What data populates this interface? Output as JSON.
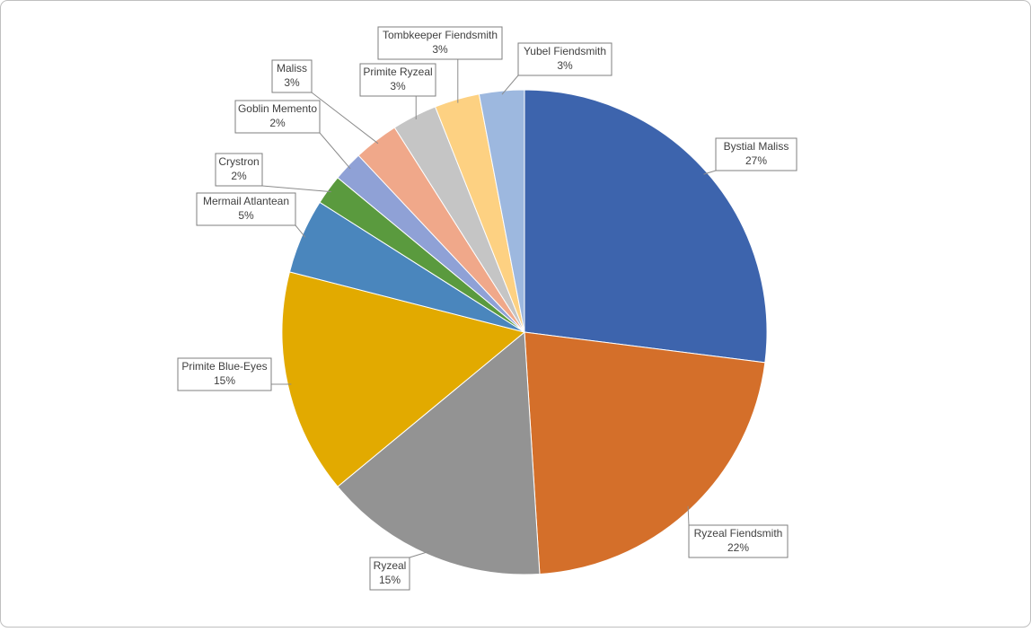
{
  "chart_data": {
    "type": "pie",
    "categories": [
      "Bystial Maliss",
      "Ryzeal Fiendsmith",
      "Ryzeal",
      "Primite Blue-Eyes",
      "Mermail Atlantean",
      "Crystron",
      "Goblin Memento",
      "Maliss",
      "Primite Ryzeal",
      "Tombkeeper Fiendsmith",
      "Yubel Fiendsmith"
    ],
    "values": [
      27,
      22,
      15,
      15,
      5,
      2,
      2,
      3,
      3,
      3,
      3
    ],
    "value_labels": [
      "27%",
      "22%",
      "15%",
      "15%",
      "5%",
      "2%",
      "2%",
      "3%",
      "3%",
      "3%",
      "3%"
    ],
    "colors": [
      "#3d64ad",
      "#d46f2a",
      "#939393",
      "#e2aa00",
      "#4a86bd",
      "#5a9a3e",
      "#8fa1d6",
      "#f0a88a",
      "#c5c5c5",
      "#fdd182",
      "#9db8df"
    ]
  }
}
